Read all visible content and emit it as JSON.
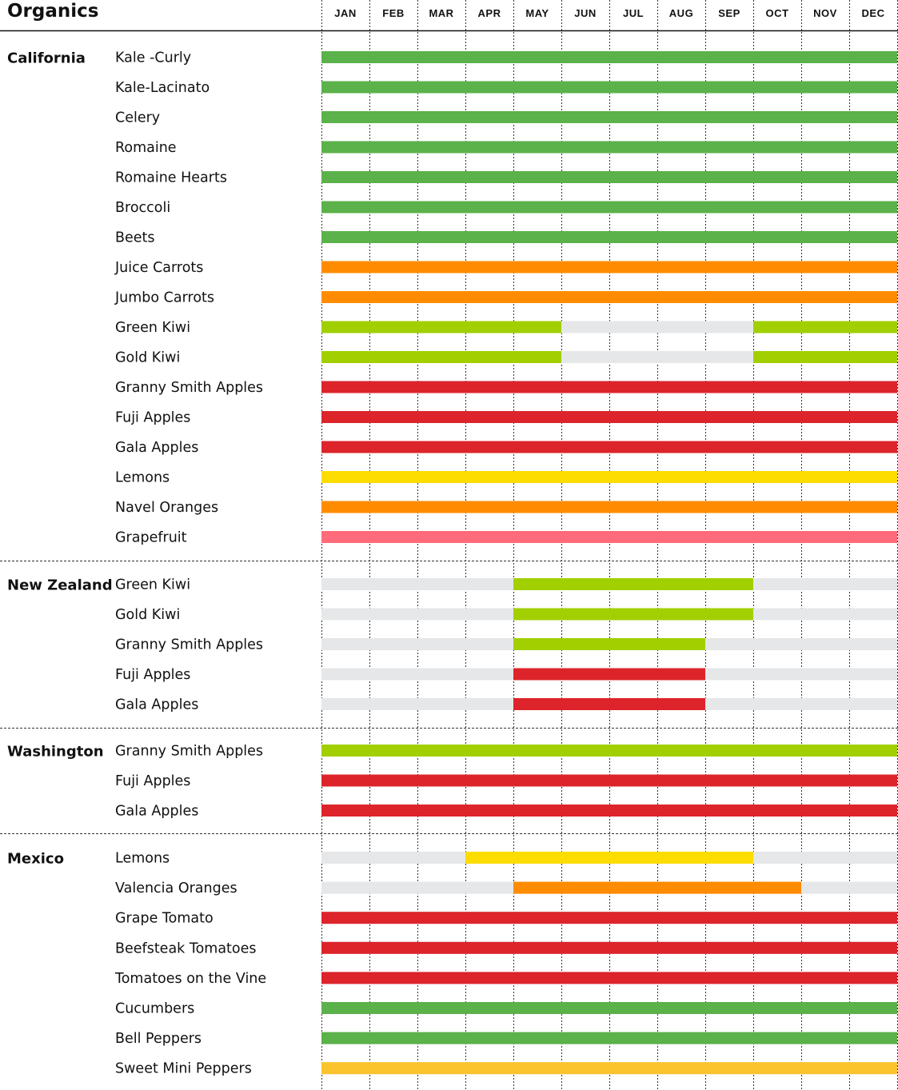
{
  "chart_data": {
    "type": "table",
    "title": "Organics",
    "months": [
      "JAN",
      "FEB",
      "MAR",
      "APR",
      "MAY",
      "JUN",
      "JUL",
      "AUG",
      "SEP",
      "OCT",
      "NOV",
      "DEC"
    ],
    "colors": {
      "green": "#5bb14a",
      "orange": "#ff8c00",
      "lime": "#a1cf00",
      "red": "#dd242b",
      "yellow": "#fddc00",
      "pink": "#ff6b7a",
      "gold": "#fbc32c",
      "empty": "#e6e7e8"
    },
    "regions": [
      {
        "name": "California",
        "items": [
          {
            "name": "Kale -Curly",
            "color": "green",
            "months": [
              1,
              2,
              3,
              4,
              5,
              6,
              7,
              8,
              9,
              10,
              11,
              12
            ]
          },
          {
            "name": "Kale-Lacinato",
            "color": "green",
            "months": [
              1,
              2,
              3,
              4,
              5,
              6,
              7,
              8,
              9,
              10,
              11,
              12
            ]
          },
          {
            "name": "Celery",
            "color": "green",
            "months": [
              1,
              2,
              3,
              4,
              5,
              6,
              7,
              8,
              9,
              10,
              11,
              12
            ]
          },
          {
            "name": "Romaine",
            "color": "green",
            "months": [
              1,
              2,
              3,
              4,
              5,
              6,
              7,
              8,
              9,
              10,
              11,
              12
            ]
          },
          {
            "name": "Romaine Hearts",
            "color": "green",
            "months": [
              1,
              2,
              3,
              4,
              5,
              6,
              7,
              8,
              9,
              10,
              11,
              12
            ]
          },
          {
            "name": "Broccoli",
            "color": "green",
            "months": [
              1,
              2,
              3,
              4,
              5,
              6,
              7,
              8,
              9,
              10,
              11,
              12
            ]
          },
          {
            "name": "Beets",
            "color": "green",
            "months": [
              1,
              2,
              3,
              4,
              5,
              6,
              7,
              8,
              9,
              10,
              11,
              12
            ]
          },
          {
            "name": "Juice Carrots",
            "color": "orange",
            "months": [
              1,
              2,
              3,
              4,
              5,
              6,
              7,
              8,
              9,
              10,
              11,
              12
            ]
          },
          {
            "name": "Jumbo Carrots",
            "color": "orange",
            "months": [
              1,
              2,
              3,
              4,
              5,
              6,
              7,
              8,
              9,
              10,
              11,
              12
            ]
          },
          {
            "name": "Green Kiwi",
            "color": "lime",
            "months": [
              1,
              2,
              3,
              4,
              5,
              10,
              11,
              12
            ]
          },
          {
            "name": "Gold Kiwi",
            "color": "lime",
            "months": [
              1,
              2,
              3,
              4,
              5,
              10,
              11,
              12
            ]
          },
          {
            "name": "Granny Smith Apples",
            "color": "red",
            "months": [
              1,
              2,
              3,
              4,
              5,
              6,
              7,
              8,
              9,
              10,
              11,
              12
            ]
          },
          {
            "name": "Fuji Apples",
            "color": "red",
            "months": [
              1,
              2,
              3,
              4,
              5,
              6,
              7,
              8,
              9,
              10,
              11,
              12
            ]
          },
          {
            "name": "Gala Apples",
            "color": "red",
            "months": [
              1,
              2,
              3,
              4,
              5,
              6,
              7,
              8,
              9,
              10,
              11,
              12
            ]
          },
          {
            "name": "Lemons",
            "color": "yellow",
            "months": [
              1,
              2,
              3,
              4,
              5,
              6,
              7,
              8,
              9,
              10,
              11,
              12
            ]
          },
          {
            "name": "Navel Oranges",
            "color": "orange",
            "months": [
              1,
              2,
              3,
              4,
              5,
              6,
              7,
              8,
              9,
              10,
              11,
              12
            ]
          },
          {
            "name": "Grapefruit",
            "color": "pink",
            "months": [
              1,
              2,
              3,
              4,
              5,
              6,
              7,
              8,
              9,
              10,
              11,
              12
            ]
          }
        ]
      },
      {
        "name": "New Zealand",
        "items": [
          {
            "name": "Green Kiwi",
            "color": "lime",
            "months": [
              5,
              6,
              7,
              8,
              9
            ]
          },
          {
            "name": "Gold Kiwi",
            "color": "lime",
            "months": [
              5,
              6,
              7,
              8,
              9
            ]
          },
          {
            "name": "Granny Smith Apples",
            "color": "lime",
            "months": [
              5,
              6,
              7,
              8
            ]
          },
          {
            "name": "Fuji Apples",
            "color": "red",
            "months": [
              5,
              6,
              7,
              8
            ]
          },
          {
            "name": "Gala Apples",
            "color": "red",
            "months": [
              5,
              6,
              7,
              8
            ]
          }
        ]
      },
      {
        "name": "Washington",
        "items": [
          {
            "name": "Granny Smith Apples",
            "color": "lime",
            "months": [
              1,
              2,
              3,
              4,
              5,
              6,
              7,
              8,
              9,
              10,
              11,
              12
            ]
          },
          {
            "name": "Fuji Apples",
            "color": "red",
            "months": [
              1,
              2,
              3,
              4,
              5,
              6,
              7,
              8,
              9,
              10,
              11,
              12
            ]
          },
          {
            "name": "Gala Apples",
            "color": "red",
            "months": [
              1,
              2,
              3,
              4,
              5,
              6,
              7,
              8,
              9,
              10,
              11,
              12
            ]
          }
        ]
      },
      {
        "name": "Mexico",
        "items": [
          {
            "name": "Lemons",
            "color": "yellow",
            "months": [
              4,
              5,
              6,
              7,
              8,
              9
            ]
          },
          {
            "name": "Valencia Oranges",
            "color": "orange",
            "months": [
              5,
              6,
              7,
              8,
              9,
              10
            ]
          },
          {
            "name": "Grape Tomato",
            "color": "red",
            "months": [
              1,
              2,
              3,
              4,
              5,
              6,
              7,
              8,
              9,
              10,
              11,
              12
            ]
          },
          {
            "name": "Beefsteak Tomatoes",
            "color": "red",
            "months": [
              1,
              2,
              3,
              4,
              5,
              6,
              7,
              8,
              9,
              10,
              11,
              12
            ]
          },
          {
            "name": "Tomatoes on the Vine",
            "color": "red",
            "months": [
              1,
              2,
              3,
              4,
              5,
              6,
              7,
              8,
              9,
              10,
              11,
              12
            ]
          },
          {
            "name": "Cucumbers",
            "color": "green",
            "months": [
              1,
              2,
              3,
              4,
              5,
              6,
              7,
              8,
              9,
              10,
              11,
              12
            ]
          },
          {
            "name": "Bell Peppers",
            "color": "green",
            "months": [
              1,
              2,
              3,
              4,
              5,
              6,
              7,
              8,
              9,
              10,
              11,
              12
            ]
          },
          {
            "name": "Sweet Mini Peppers",
            "color": "gold",
            "months": [
              1,
              2,
              3,
              4,
              5,
              6,
              7,
              8,
              9,
              10,
              11,
              12
            ]
          }
        ]
      }
    ]
  }
}
